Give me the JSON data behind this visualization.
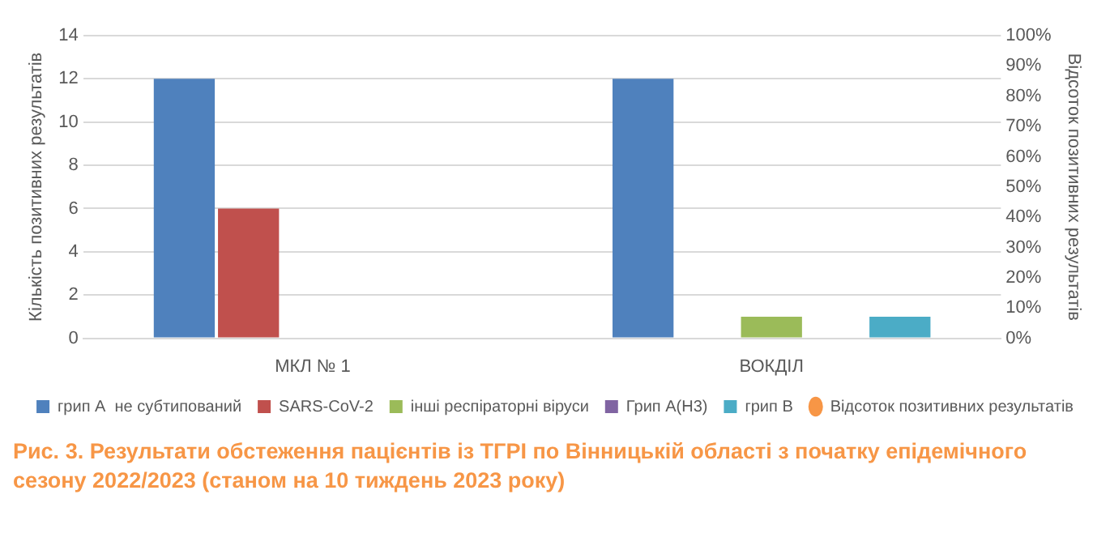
{
  "chart_data": {
    "type": "bar",
    "title": "Рис. 3. Результати обстеження пацієнтів із ТГРІ по Вінницькій області з початку епідемічного сезону 2022/2023 (станом на 10 тиждень 2023 року)",
    "ylabel": "Кількість позитивних результатів",
    "y2label": "Відсоток позитивних результатів",
    "categories": [
      "МКЛ № 1",
      "ВОКДІЛ"
    ],
    "series": [
      {
        "name": "грип А  не субтипований",
        "color": "#4f81bd",
        "values": [
          12,
          12
        ]
      },
      {
        "name": "SARS-CoV-2",
        "color": "#c0504d",
        "values": [
          6,
          0
        ]
      },
      {
        "name": "інші респіраторні віруси",
        "color": "#9bbb59",
        "values": [
          0,
          1
        ]
      },
      {
        "name": "Грип А(H3)",
        "color": "#8064a2",
        "values": [
          0,
          0
        ]
      },
      {
        "name": "грип В",
        "color": "#4bacc6",
        "values": [
          0,
          1
        ]
      },
      {
        "name": "Відсоток позитивних результатів",
        "color": "#f79646",
        "type": "scatter",
        "marker": "circle",
        "values": [
          null,
          null
        ]
      }
    ],
    "ylim": [
      0,
      14
    ],
    "yticks": [
      0,
      2,
      4,
      6,
      8,
      10,
      12,
      14
    ],
    "y2lim": [
      0,
      100
    ],
    "y2ticks": [
      {
        "value": 0,
        "label": "0%"
      },
      {
        "value": 10,
        "label": "10%"
      },
      {
        "value": 20,
        "label": "20%"
      },
      {
        "value": 30,
        "label": "30%"
      },
      {
        "value": 40,
        "label": "40%"
      },
      {
        "value": 50,
        "label": "50%"
      },
      {
        "value": 60,
        "label": "60%"
      },
      {
        "value": 70,
        "label": "70%"
      },
      {
        "value": 80,
        "label": "80%"
      },
      {
        "value": 90,
        "label": "90%"
      },
      {
        "value": 100,
        "label": "100%"
      }
    ],
    "grid": "y",
    "legend": "bottom"
  }
}
